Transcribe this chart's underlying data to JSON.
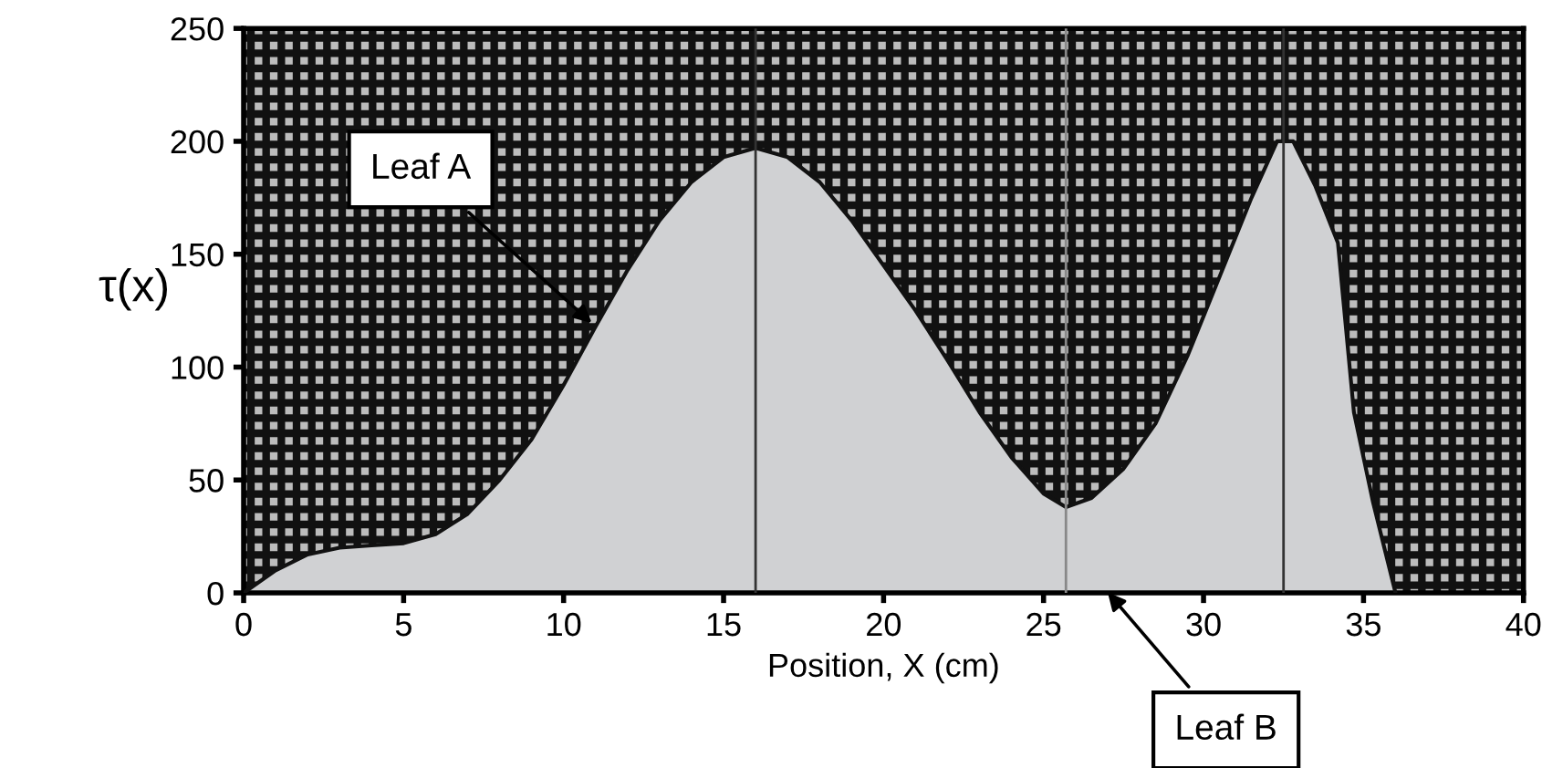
{
  "chart_data": {
    "type": "area",
    "xlabel": "Position, X (cm)",
    "ylabel": "τ(x)",
    "series": [
      {
        "color": "#d0d1d3",
        "x": [
          0,
          1,
          2,
          3,
          4,
          5,
          6,
          7,
          8,
          9,
          10,
          11,
          12,
          13,
          14,
          15,
          16,
          17,
          18,
          19,
          20,
          21,
          22,
          23,
          24,
          25,
          25.7,
          26.5,
          27.5,
          28.5,
          29.5,
          30.5,
          31.5,
          32.3,
          32.8,
          33.5,
          34.2,
          34.7,
          35.3,
          36
        ],
        "values": [
          0,
          10,
          17,
          20,
          21,
          22,
          26,
          35,
          50,
          68,
          92,
          118,
          143,
          165,
          182,
          193,
          197,
          193,
          182,
          165,
          145,
          125,
          103,
          80,
          60,
          44,
          38,
          42,
          55,
          75,
          105,
          140,
          175,
          200,
          200,
          180,
          155,
          80,
          40,
          0
        ]
      }
    ],
    "xlim": [
      0,
      40
    ],
    "xticks": [
      0,
      5,
      10,
      15,
      20,
      25,
      30,
      35,
      40
    ],
    "ylim": [
      0,
      250
    ],
    "yticks": [
      0,
      50,
      100,
      150,
      200,
      250
    ],
    "ref_lines": [
      {
        "axis": "x",
        "value": 16,
        "color": "#333333"
      },
      {
        "axis": "x",
        "value": 25.7,
        "color": "#888888"
      },
      {
        "axis": "x",
        "value": 32.5,
        "color": "#333333"
      }
    ],
    "annotations": [
      {
        "text": "Leaf A",
        "x": 11,
        "y": 118
      },
      {
        "text": "Leaf B",
        "x": 26.9,
        "y": 2
      }
    ],
    "grid": false
  }
}
